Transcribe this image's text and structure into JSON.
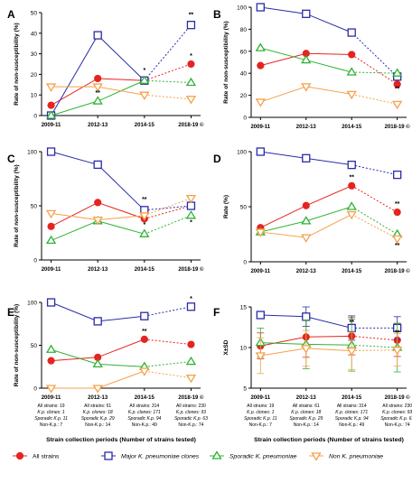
{
  "colors": {
    "all": "#e52421",
    "major": "#2b2ba8",
    "sporadic": "#2fb335",
    "non": "#f5a04a"
  },
  "legend": [
    {
      "key": "all",
      "marker": "circle",
      "label": "All strains"
    },
    {
      "key": "major",
      "marker": "square",
      "label": "Major K. pneumoniae clones"
    },
    {
      "key": "sporadic",
      "marker": "triangle-up",
      "label": "Sporadic K. pneumoniae"
    },
    {
      "key": "non",
      "marker": "triangle-down",
      "label": "Non K. pneumoniae"
    }
  ],
  "periods": [
    "2009-11",
    "2012-13",
    "2014-15",
    "2018-19 ©"
  ],
  "counts_table": [
    [
      "All strains: 19",
      "K.p. clones: 1",
      "Sporadic K.p. 11",
      "Non-K.p.: 7"
    ],
    [
      "All strains: 61",
      "K.p. clones: 18",
      "Sporadic K.p. 29",
      "Non-K.p.: 14"
    ],
    [
      "All strains: 314",
      "K.p. clones: 171",
      "Sporadic K.p. 94",
      "Non-K.p.: 49"
    ],
    [
      "All strains: 230",
      "K.p. clones: 93",
      "Sporadic K.p. 63",
      "Non-K.p.: 74"
    ]
  ],
  "xaxis_title": "Strain collection periods (Number of strains tested)",
  "chart_data": [
    {
      "panel": "A",
      "type": "line",
      "categories": [
        "2009-11",
        "2012-13",
        "2014-15",
        "2018-19 ©"
      ],
      "ylabel": "Rate of non-susceptibility (%)",
      "ylim": [
        0,
        50
      ],
      "yticks": [
        0,
        10,
        20,
        30,
        40,
        50
      ],
      "series": [
        {
          "name": "All strains",
          "key": "all",
          "values": [
            5,
            18,
            17,
            25
          ]
        },
        {
          "name": "Major K. pneumoniae clones",
          "key": "major",
          "values": [
            0,
            39,
            17,
            44
          ]
        },
        {
          "name": "Sporadic K. pneumoniae",
          "key": "sporadic",
          "values": [
            0,
            7,
            17,
            16
          ]
        },
        {
          "name": "Non K. pneumoniae",
          "key": "non",
          "values": [
            14,
            14,
            10,
            8
          ]
        }
      ],
      "annotations": [
        {
          "text": "**",
          "category": "2012-13",
          "y": 10
        },
        {
          "text": "*",
          "category": "2014-15",
          "y": 21
        },
        {
          "text": "**",
          "category": "2018-19 ©",
          "y": 48
        },
        {
          "text": "*",
          "category": "2018-19 ©",
          "y": 28
        }
      ]
    },
    {
      "panel": "B",
      "type": "line",
      "categories": [
        "2009-11",
        "2012-13",
        "2014-15",
        "2018-19 ©"
      ],
      "ylabel": "Rate of non-susceptibility (%)",
      "ylim": [
        0,
        100
      ],
      "yticks": [
        0,
        20,
        40,
        60,
        80,
        100
      ],
      "series": [
        {
          "name": "All strains",
          "key": "all",
          "values": [
            47,
            58,
            57,
            30
          ]
        },
        {
          "name": "Major K. pneumoniae clones",
          "key": "major",
          "values": [
            100,
            94,
            77,
            37
          ]
        },
        {
          "name": "Sporadic K. pneumoniae",
          "key": "sporadic",
          "values": [
            63,
            52,
            41,
            40
          ]
        },
        {
          "name": "Non K. pneumoniae",
          "key": "non",
          "values": [
            14,
            28,
            21,
            12
          ]
        }
      ],
      "annotations": [
        {
          "text": "**",
          "category": "2018-19 ©",
          "y": 24
        }
      ]
    },
    {
      "panel": "C",
      "type": "line",
      "categories": [
        "2009-11",
        "2012-13",
        "2014-15",
        "2018-19 ©"
      ],
      "ylabel": "Rate of non-susceptibility (%)",
      "ylim": [
        0,
        100
      ],
      "yticks": [
        0,
        50,
        100
      ],
      "series": [
        {
          "name": "All strains",
          "key": "all",
          "values": [
            31,
            53,
            38,
            50
          ]
        },
        {
          "name": "Major K. pneumoniae clones",
          "key": "major",
          "values": [
            100,
            88,
            46,
            50
          ]
        },
        {
          "name": "Sporadic K. pneumoniae",
          "key": "sporadic",
          "values": [
            18,
            36,
            24,
            41
          ]
        },
        {
          "name": "Non K. pneumoniae",
          "key": "non",
          "values": [
            43,
            37,
            41,
            57
          ]
        }
      ],
      "annotations": [
        {
          "text": "**",
          "category": "2014-15",
          "y": 54
        },
        {
          "text": "*",
          "category": "2014-15",
          "y": 31
        },
        {
          "text": "*",
          "category": "2018-19 ©",
          "y": 33
        }
      ]
    },
    {
      "panel": "D",
      "type": "line",
      "categories": [
        "2009-11",
        "2012-13",
        "2014-15",
        "2018-19 ©"
      ],
      "ylabel": "Rate (%)",
      "ylim": [
        0,
        100
      ],
      "yticks": [
        0,
        50,
        100
      ],
      "series": [
        {
          "name": "All strains",
          "key": "all",
          "values": [
            31,
            51,
            69,
            45
          ]
        },
        {
          "name": "Major K. pneumoniae clones",
          "key": "major",
          "values": [
            100,
            94,
            88,
            79
          ]
        },
        {
          "name": "Sporadic K. pneumoniae",
          "key": "sporadic",
          "values": [
            27,
            37,
            50,
            25
          ]
        },
        {
          "name": "Non K. pneumoniae",
          "key": "non",
          "values": [
            27,
            22,
            43,
            21
          ]
        }
      ],
      "annotations": [
        {
          "text": "**",
          "category": "2014-15",
          "y": 75
        },
        {
          "text": "**",
          "category": "2018-19 ©",
          "y": 51
        },
        {
          "text": "**",
          "category": "2018-19 ©",
          "y": 13
        }
      ]
    },
    {
      "panel": "E",
      "type": "line",
      "categories": [
        "2009-11",
        "2012-13",
        "2014-15",
        "2018-19 ©"
      ],
      "ylabel": "Rate of non-susceptibility (%)",
      "ylim": [
        0,
        100
      ],
      "yticks": [
        0,
        50,
        100
      ],
      "series": [
        {
          "name": "All strains",
          "key": "all",
          "values": [
            32,
            36,
            57,
            51
          ]
        },
        {
          "name": "Major K. pneumoniae clones",
          "key": "major",
          "values": [
            100,
            78,
            84,
            95
          ]
        },
        {
          "name": "Sporadic K. pneumoniae",
          "key": "sporadic",
          "values": [
            45,
            28,
            25,
            31
          ]
        },
        {
          "name": "Non K. pneumoniae",
          "key": "non",
          "values": [
            0,
            0,
            20,
            12
          ]
        }
      ],
      "annotations": [
        {
          "text": "**",
          "category": "2014-15",
          "y": 64
        },
        {
          "text": "*",
          "category": "2018-19 ©",
          "y": 102
        }
      ]
    },
    {
      "panel": "F",
      "type": "line",
      "categories": [
        "2009-11",
        "2012-13",
        "2014-15",
        "2018-19 ©"
      ],
      "ylabel": "X±SD",
      "ylim": [
        5,
        15
      ],
      "yticks": [
        5,
        10,
        15
      ],
      "series": [
        {
          "name": "All strains",
          "key": "all",
          "values": [
            10.2,
            11.3,
            11.4,
            10.9
          ],
          "sd": [
            1.6,
            2.5,
            2.3,
            2.0
          ]
        },
        {
          "name": "Major K. pneumoniae clones",
          "key": "major",
          "values": [
            14.0,
            13.8,
            12.4,
            12.4
          ],
          "sd": [
            0,
            1.2,
            1.5,
            1.4
          ]
        },
        {
          "name": "Sporadic K. pneumoniae",
          "key": "sporadic",
          "values": [
            10.6,
            10.4,
            10.3,
            10.0
          ],
          "sd": [
            1.8,
            3.0,
            3.2,
            3.0
          ]
        },
        {
          "name": "Non K. pneumoniae",
          "key": "non",
          "values": [
            9.0,
            9.9,
            9.6,
            9.7
          ],
          "sd": [
            2.2,
            2.2,
            2.3,
            2.0
          ]
        }
      ],
      "annotations": [
        {
          "text": "**",
          "category": "2014-15",
          "y": 12.9
        },
        {
          "text": "**",
          "category": "2018-19 ©",
          "y": 11.6
        }
      ]
    }
  ]
}
